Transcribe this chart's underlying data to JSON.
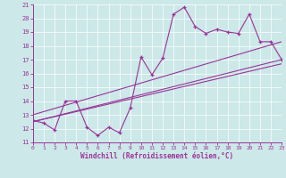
{
  "xlabel": "Windchill (Refroidissement éolien,°C)",
  "bg_color": "#cce8e8",
  "line_color": "#993399",
  "xlim": [
    0,
    23
  ],
  "ylim": [
    11,
    21
  ],
  "xticks": [
    0,
    1,
    2,
    3,
    4,
    5,
    6,
    7,
    8,
    9,
    10,
    11,
    12,
    13,
    14,
    15,
    16,
    17,
    18,
    19,
    20,
    21,
    22,
    23
  ],
  "yticks": [
    11,
    12,
    13,
    14,
    15,
    16,
    17,
    18,
    19,
    20,
    21
  ],
  "series1_x": [
    0,
    1,
    2,
    3,
    4,
    5,
    6,
    7,
    8,
    9,
    10,
    11,
    12,
    13,
    14,
    15,
    16,
    17,
    18,
    19,
    20,
    21,
    22,
    23
  ],
  "series1_y": [
    12.6,
    12.4,
    11.9,
    14.0,
    14.0,
    12.1,
    11.5,
    12.1,
    11.7,
    13.5,
    17.2,
    15.9,
    17.1,
    20.3,
    20.8,
    19.4,
    18.9,
    19.2,
    19.0,
    18.9,
    20.3,
    18.3,
    18.3,
    17.0
  ],
  "series2_x": [
    0,
    23
  ],
  "series2_y": [
    12.5,
    17.0
  ],
  "series3_x": [
    0,
    23
  ],
  "series3_y": [
    13.0,
    18.3
  ],
  "series4_x": [
    0,
    23
  ],
  "series4_y": [
    12.5,
    16.7
  ]
}
